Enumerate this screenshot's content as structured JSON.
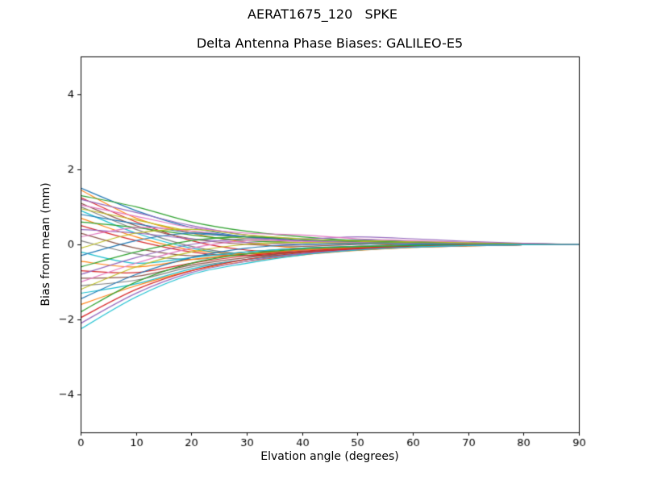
{
  "figure": {
    "suptitle": "AERAT1675_120   SPKE",
    "title": "Delta Antenna Phase Biases: GALILEO-E5",
    "xlabel": "Elvation angle (degrees)",
    "ylabel": "Bias from mean (mm)"
  },
  "chart_data": {
    "type": "line",
    "suptitle": "AERAT1675_120   SPKE",
    "title": "Delta Antenna Phase Biases: GALILEO-E5",
    "xlabel": "Elvation angle (degrees)",
    "ylabel": "Bias from mean (mm)",
    "xlim": [
      0,
      90
    ],
    "ylim": [
      -5,
      5
    ],
    "xticks": [
      0,
      10,
      20,
      30,
      40,
      50,
      60,
      70,
      80,
      90
    ],
    "xticklabels": [
      "0",
      "10",
      "20",
      "30",
      "40",
      "50",
      "60",
      "70",
      "80",
      "90"
    ],
    "yticks": [
      -4,
      -2,
      0,
      2,
      4
    ],
    "yticklabels": [
      "−4",
      "−2",
      "0",
      "2",
      "4"
    ],
    "grid": false,
    "legend": "none",
    "axis_color": "#000000",
    "line_width": 1.2,
    "x": [
      0,
      10,
      20,
      30,
      40,
      50,
      60,
      70,
      80,
      90
    ],
    "series": [
      {
        "color": "#1f77b4",
        "values": [
          1.5,
          0.9,
          0.45,
          0.2,
          0.1,
          0.12,
          0.08,
          0.05,
          0.02,
          0.0
        ]
      },
      {
        "color": "#ff7f0e",
        "values": [
          1.45,
          0.7,
          0.3,
          0.05,
          -0.1,
          -0.05,
          0.02,
          0.04,
          0.01,
          0.0
        ]
      },
      {
        "color": "#2ca02c",
        "values": [
          1.3,
          1.0,
          0.6,
          0.35,
          0.2,
          0.1,
          0.05,
          0.02,
          0.01,
          0.0
        ]
      },
      {
        "color": "#d62728",
        "values": [
          1.25,
          0.6,
          0.1,
          -0.15,
          -0.2,
          -0.1,
          -0.05,
          -0.02,
          -0.01,
          0.0
        ]
      },
      {
        "color": "#9467bd",
        "values": [
          1.2,
          0.85,
          0.5,
          0.25,
          0.15,
          0.2,
          0.15,
          0.08,
          0.03,
          0.0
        ]
      },
      {
        "color": "#8c564b",
        "values": [
          1.1,
          0.5,
          0.15,
          0.0,
          -0.05,
          0.0,
          0.05,
          0.03,
          0.01,
          0.0
        ]
      },
      {
        "color": "#e377c2",
        "values": [
          1.05,
          0.75,
          0.45,
          0.3,
          0.25,
          0.15,
          0.1,
          0.05,
          0.02,
          0.0
        ]
      },
      {
        "color": "#7f7f7f",
        "values": [
          1.0,
          0.4,
          -0.05,
          -0.25,
          -0.15,
          -0.08,
          -0.03,
          -0.02,
          -0.01,
          0.0
        ]
      },
      {
        "color": "#bcbd22",
        "values": [
          0.95,
          0.65,
          0.35,
          0.15,
          0.05,
          0.1,
          0.07,
          0.04,
          0.01,
          0.0
        ]
      },
      {
        "color": "#17becf",
        "values": [
          0.9,
          0.3,
          -0.1,
          -0.3,
          -0.25,
          -0.15,
          -0.07,
          -0.03,
          -0.01,
          0.0
        ]
      },
      {
        "color": "#1f77b4",
        "values": [
          0.8,
          0.55,
          0.3,
          0.2,
          0.1,
          0.05,
          0.02,
          0.01,
          0.0,
          0.0
        ]
      },
      {
        "color": "#ff7f0e",
        "values": [
          0.7,
          0.2,
          -0.15,
          -0.25,
          -0.2,
          -0.1,
          -0.05,
          -0.02,
          0.0,
          0.0
        ]
      },
      {
        "color": "#2ca02c",
        "values": [
          0.6,
          0.45,
          0.25,
          0.1,
          0.05,
          0.08,
          0.05,
          0.02,
          0.01,
          0.0
        ]
      },
      {
        "color": "#d62728",
        "values": [
          0.5,
          0.1,
          -0.2,
          -0.3,
          -0.2,
          -0.12,
          -0.06,
          -0.03,
          -0.01,
          0.0
        ]
      },
      {
        "color": "#9467bd",
        "values": [
          0.4,
          0.3,
          0.15,
          0.05,
          0.0,
          0.03,
          0.02,
          0.01,
          0.0,
          0.0
        ]
      },
      {
        "color": "#8c564b",
        "values": [
          0.3,
          -0.1,
          -0.3,
          -0.2,
          -0.1,
          -0.05,
          -0.02,
          -0.01,
          0.0,
          0.0
        ]
      },
      {
        "color": "#e377c2",
        "values": [
          0.2,
          0.45,
          0.35,
          0.2,
          0.1,
          0.05,
          0.03,
          0.01,
          0.0,
          0.0
        ]
      },
      {
        "color": "#7f7f7f",
        "values": [
          0.1,
          -0.25,
          -0.4,
          -0.25,
          -0.15,
          -0.08,
          -0.04,
          -0.02,
          -0.01,
          0.0
        ]
      },
      {
        "color": "#bcbd22",
        "values": [
          -0.1,
          0.3,
          0.4,
          0.25,
          0.15,
          0.08,
          0.04,
          0.02,
          0.01,
          0.0
        ]
      },
      {
        "color": "#17becf",
        "values": [
          -0.2,
          -0.5,
          -0.35,
          -0.2,
          -0.1,
          -0.05,
          -0.02,
          -0.01,
          0.0,
          0.0
        ]
      },
      {
        "color": "#1f77b4",
        "values": [
          -0.3,
          0.1,
          0.3,
          0.2,
          0.1,
          0.05,
          0.02,
          0.01,
          0.0,
          0.0
        ]
      },
      {
        "color": "#ff7f0e",
        "values": [
          -0.45,
          -0.6,
          -0.4,
          -0.25,
          -0.15,
          -0.08,
          -0.04,
          -0.02,
          -0.01,
          0.0
        ]
      },
      {
        "color": "#2ca02c",
        "values": [
          -0.6,
          -0.2,
          0.1,
          0.2,
          0.12,
          0.06,
          0.03,
          0.01,
          0.0,
          0.0
        ]
      },
      {
        "color": "#d62728",
        "values": [
          -0.7,
          -0.75,
          -0.5,
          -0.3,
          -0.18,
          -0.1,
          -0.05,
          -0.02,
          -0.01,
          0.0
        ]
      },
      {
        "color": "#9467bd",
        "values": [
          -0.8,
          -0.35,
          0.0,
          0.15,
          0.1,
          0.05,
          0.02,
          0.01,
          0.0,
          0.0
        ]
      },
      {
        "color": "#8c564b",
        "values": [
          -0.9,
          -0.85,
          -0.55,
          -0.35,
          -0.2,
          -0.12,
          -0.06,
          -0.03,
          -0.01,
          0.0
        ]
      },
      {
        "color": "#e377c2",
        "values": [
          -1.0,
          -0.5,
          -0.1,
          0.1,
          0.08,
          0.04,
          0.02,
          0.01,
          0.0,
          0.0
        ]
      },
      {
        "color": "#7f7f7f",
        "values": [
          -1.1,
          -0.95,
          -0.6,
          -0.4,
          -0.25,
          -0.15,
          -0.08,
          -0.04,
          -0.01,
          0.0
        ]
      },
      {
        "color": "#bcbd22",
        "values": [
          -1.2,
          -0.6,
          -0.2,
          0.0,
          0.05,
          0.03,
          0.01,
          0.0,
          0.0,
          0.0
        ]
      },
      {
        "color": "#17becf",
        "values": [
          -1.3,
          -1.05,
          -0.65,
          -0.4,
          -0.25,
          -0.15,
          -0.07,
          -0.03,
          -0.01,
          0.0
        ]
      },
      {
        "color": "#1f77b4",
        "values": [
          -1.45,
          -0.8,
          -0.35,
          -0.1,
          0.0,
          0.02,
          0.01,
          0.0,
          0.0,
          0.0
        ]
      },
      {
        "color": "#ff7f0e",
        "values": [
          -1.6,
          -1.1,
          -0.7,
          -0.45,
          -0.28,
          -0.16,
          -0.08,
          -0.04,
          -0.01,
          0.0
        ]
      },
      {
        "color": "#2ca02c",
        "values": [
          -1.8,
          -1.0,
          -0.5,
          -0.25,
          -0.12,
          -0.06,
          -0.03,
          -0.01,
          0.0,
          0.0
        ]
      },
      {
        "color": "#d62728",
        "values": [
          -1.95,
          -1.2,
          -0.7,
          -0.4,
          -0.22,
          -0.12,
          -0.06,
          -0.02,
          -0.01,
          0.0
        ]
      },
      {
        "color": "#9467bd",
        "values": [
          -2.1,
          -1.3,
          -0.75,
          -0.45,
          -0.25,
          -0.14,
          -0.07,
          -0.03,
          -0.01,
          0.0
        ]
      },
      {
        "color": "#17becf",
        "values": [
          -2.25,
          -1.4,
          -0.8,
          -0.5,
          -0.28,
          -0.15,
          -0.07,
          -0.03,
          -0.01,
          0.0
        ]
      }
    ]
  }
}
